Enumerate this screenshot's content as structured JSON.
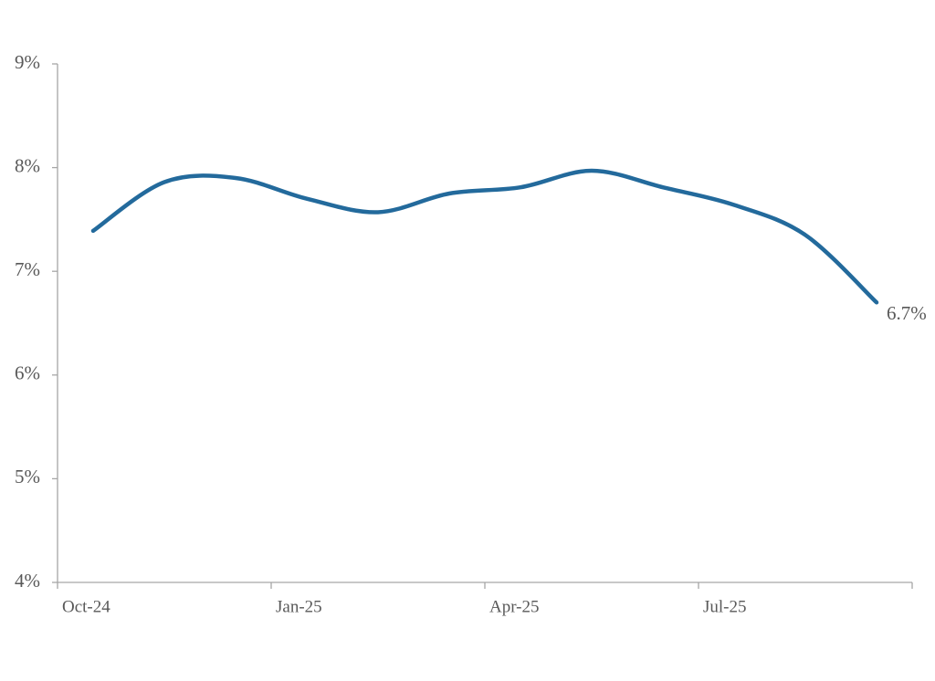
{
  "chart_data": {
    "type": "line",
    "categories": [
      "Oct-24",
      null,
      null,
      "Jan-25",
      null,
      null,
      "Apr-25",
      null,
      null,
      "Jul-25",
      null,
      null
    ],
    "series": [
      {
        "color": "#236a9c",
        "values": [
          7.39,
          7.86,
          7.9,
          7.7,
          7.57,
          7.75,
          7.81,
          7.97,
          7.81,
          7.64,
          7.35,
          6.7
        ],
        "value_labels": [
          null,
          null,
          null,
          null,
          null,
          null,
          null,
          null,
          null,
          null,
          null,
          "6.7%"
        ]
      }
    ],
    "ylim": [
      4,
      9
    ],
    "yticks": [
      {
        "value": 4,
        "label": "4%"
      },
      {
        "value": 5,
        "label": "5%"
      },
      {
        "value": 6,
        "label": "6%"
      },
      {
        "value": 7,
        "label": "7%"
      },
      {
        "value": 8,
        "label": "8%"
      },
      {
        "value": 9,
        "label": "9%"
      }
    ],
    "grid": false
  }
}
